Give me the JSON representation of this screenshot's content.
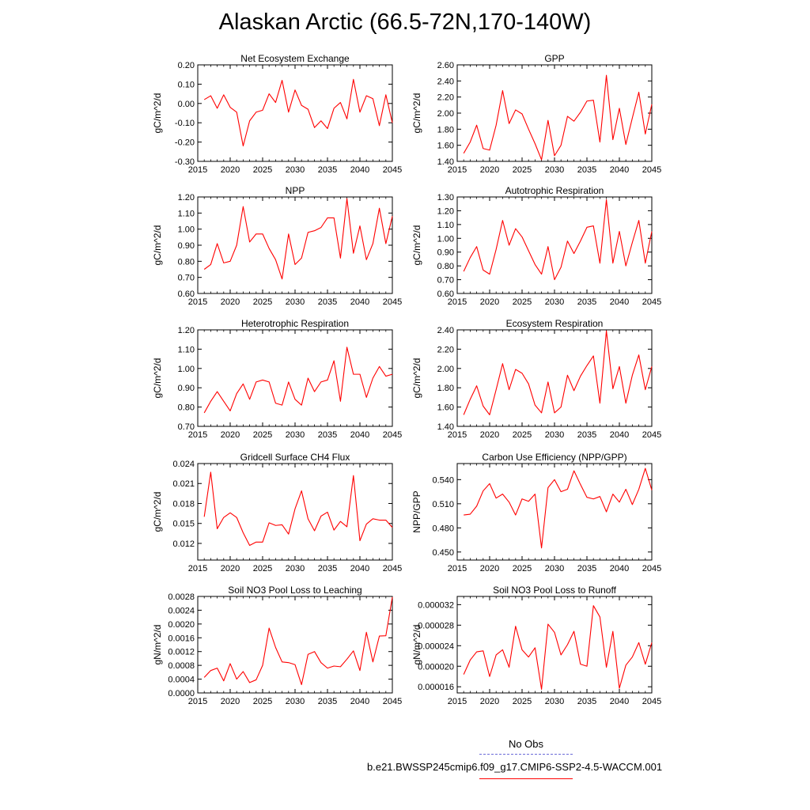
{
  "title": "Alaskan Arctic (66.5-72N,170-140W)",
  "colors": {
    "series": "#ff0000",
    "obs": "#6b6bd8",
    "axis": "#000000"
  },
  "legend": {
    "obs_label": "No Obs",
    "model_label": "b.e21.BWSSP245cmip6.f09_g17.CMIP6-SSP2-4.5-WACCM.001"
  },
  "chart_data": [
    {
      "type": "line",
      "title": "Net Ecosystem Exchange",
      "xlabel": "",
      "ylabel": "gC/m^2/d",
      "xlim": [
        2015,
        2045
      ],
      "ylim": [
        -0.3,
        0.2
      ],
      "xticks": [
        "2015",
        "2020",
        "2025",
        "2030",
        "2035",
        "2040",
        "2045"
      ],
      "yticks": [
        "-0.30",
        "-0.20",
        "-0.10",
        "0.00",
        "0.10",
        "0.20"
      ],
      "x": [
        2016,
        2017,
        2018,
        2019,
        2020,
        2021,
        2022,
        2023,
        2024,
        2025,
        2026,
        2027,
        2028,
        2029,
        2030,
        2031,
        2032,
        2033,
        2034,
        2035,
        2036,
        2037,
        2038,
        2039,
        2040,
        2041,
        2042,
        2043,
        2044,
        2045
      ],
      "values": [
        0.02,
        0.04,
        -0.025,
        0.045,
        -0.02,
        -0.045,
        -0.22,
        -0.09,
        -0.045,
        -0.035,
        0.05,
        0.005,
        0.12,
        -0.045,
        0.07,
        -0.01,
        -0.03,
        -0.125,
        -0.09,
        -0.13,
        -0.025,
        0.005,
        -0.08,
        0.125,
        -0.045,
        0.04,
        0.025,
        -0.115,
        0.045,
        -0.1
      ]
    },
    {
      "type": "line",
      "title": "GPP",
      "xlabel": "",
      "ylabel": "gC/m^2/d",
      "xlim": [
        2015,
        2045
      ],
      "ylim": [
        1.4,
        2.6
      ],
      "xticks": [
        "2015",
        "2020",
        "2025",
        "2030",
        "2035",
        "2040",
        "2045"
      ],
      "yticks": [
        "1.40",
        "1.60",
        "1.80",
        "2.00",
        "2.20",
        "2.40",
        "2.60"
      ],
      "x": [
        2016,
        2017,
        2018,
        2019,
        2020,
        2021,
        2022,
        2023,
        2024,
        2025,
        2026,
        2027,
        2028,
        2029,
        2030,
        2031,
        2032,
        2033,
        2034,
        2035,
        2036,
        2037,
        2038,
        2039,
        2040,
        2041,
        2042,
        2043,
        2044,
        2045
      ],
      "values": [
        1.5,
        1.64,
        1.85,
        1.56,
        1.54,
        1.85,
        2.28,
        1.87,
        2.04,
        1.99,
        1.8,
        1.62,
        1.42,
        1.91,
        1.47,
        1.6,
        1.96,
        1.9,
        2.01,
        2.15,
        2.16,
        1.64,
        2.47,
        1.67,
        2.06,
        1.61,
        1.94,
        2.26,
        1.74,
        2.11
      ]
    },
    {
      "type": "line",
      "title": "NPP",
      "xlabel": "",
      "ylabel": "gC/m^2/d",
      "xlim": [
        2015,
        2045
      ],
      "ylim": [
        0.6,
        1.2
      ],
      "xticks": [
        "2015",
        "2020",
        "2025",
        "2030",
        "2035",
        "2040",
        "2045"
      ],
      "yticks": [
        "0.60",
        "0.70",
        "0.80",
        "0.90",
        "1.00",
        "1.10",
        "1.20"
      ],
      "x": [
        2016,
        2017,
        2018,
        2019,
        2020,
        2021,
        2022,
        2023,
        2024,
        2025,
        2026,
        2027,
        2028,
        2029,
        2030,
        2031,
        2032,
        2033,
        2034,
        2035,
        2036,
        2037,
        2038,
        2039,
        2040,
        2041,
        2042,
        2043,
        2044,
        2045
      ],
      "values": [
        0.75,
        0.78,
        0.91,
        0.79,
        0.8,
        0.9,
        1.14,
        0.92,
        0.97,
        0.97,
        0.88,
        0.81,
        0.69,
        0.97,
        0.78,
        0.82,
        0.98,
        0.99,
        1.01,
        1.07,
        1.07,
        0.82,
        1.19,
        0.85,
        1.02,
        0.81,
        0.91,
        1.13,
        0.91,
        1.08
      ]
    },
    {
      "type": "line",
      "title": "Autotrophic Respiration",
      "xlabel": "",
      "ylabel": "gC/m^2/d",
      "xlim": [
        2015,
        2045
      ],
      "ylim": [
        0.6,
        1.3
      ],
      "xticks": [
        "2015",
        "2020",
        "2025",
        "2030",
        "2035",
        "2040",
        "2045"
      ],
      "yticks": [
        "0.60",
        "0.70",
        "0.80",
        "0.90",
        "1.00",
        "1.10",
        "1.20",
        "1.30"
      ],
      "x": [
        2016,
        2017,
        2018,
        2019,
        2020,
        2021,
        2022,
        2023,
        2024,
        2025,
        2026,
        2027,
        2028,
        2029,
        2030,
        2031,
        2032,
        2033,
        2034,
        2035,
        2036,
        2037,
        2038,
        2039,
        2040,
        2041,
        2042,
        2043,
        2044,
        2045
      ],
      "values": [
        0.76,
        0.86,
        0.94,
        0.77,
        0.74,
        0.92,
        1.13,
        0.95,
        1.07,
        1.01,
        0.91,
        0.81,
        0.74,
        0.94,
        0.7,
        0.79,
        0.98,
        0.89,
        0.98,
        1.08,
        1.09,
        0.82,
        1.28,
        0.82,
        1.05,
        0.8,
        0.97,
        1.13,
        0.82,
        1.05
      ]
    },
    {
      "type": "line",
      "title": "Heterotrophic Respiration",
      "xlabel": "",
      "ylabel": "gC/m^2/d",
      "xlim": [
        2015,
        2045
      ],
      "ylim": [
        0.7,
        1.2
      ],
      "xticks": [
        "2015",
        "2020",
        "2025",
        "2030",
        "2035",
        "2040",
        "2045"
      ],
      "yticks": [
        "0.70",
        "0.80",
        "0.90",
        "1.00",
        "1.10",
        "1.20"
      ],
      "x": [
        2016,
        2017,
        2018,
        2019,
        2020,
        2021,
        2022,
        2023,
        2024,
        2025,
        2026,
        2027,
        2028,
        2029,
        2030,
        2031,
        2032,
        2033,
        2034,
        2035,
        2036,
        2037,
        2038,
        2039,
        2040,
        2041,
        2042,
        2043,
        2044,
        2045
      ],
      "values": [
        0.77,
        0.83,
        0.88,
        0.83,
        0.78,
        0.87,
        0.92,
        0.84,
        0.93,
        0.94,
        0.93,
        0.82,
        0.81,
        0.93,
        0.84,
        0.81,
        0.95,
        0.88,
        0.93,
        0.94,
        1.04,
        0.83,
        1.11,
        0.97,
        0.97,
        0.85,
        0.95,
        1.01,
        0.96,
        0.97
      ]
    },
    {
      "type": "line",
      "title": "Ecosystem Respiration",
      "xlabel": "",
      "ylabel": "gC/m^2/d",
      "xlim": [
        2015,
        2045
      ],
      "ylim": [
        1.4,
        2.4
      ],
      "xticks": [
        "2015",
        "2020",
        "2025",
        "2030",
        "2035",
        "2040",
        "2045"
      ],
      "yticks": [
        "1.40",
        "1.60",
        "1.80",
        "2.00",
        "2.20",
        "2.40"
      ],
      "x": [
        2016,
        2017,
        2018,
        2019,
        2020,
        2021,
        2022,
        2023,
        2024,
        2025,
        2026,
        2027,
        2028,
        2029,
        2030,
        2031,
        2032,
        2033,
        2034,
        2035,
        2036,
        2037,
        2038,
        2039,
        2040,
        2041,
        2042,
        2043,
        2044,
        2045
      ],
      "values": [
        1.52,
        1.68,
        1.82,
        1.61,
        1.52,
        1.78,
        2.05,
        1.78,
        1.99,
        1.95,
        1.84,
        1.62,
        1.54,
        1.86,
        1.54,
        1.6,
        1.93,
        1.77,
        1.92,
        2.03,
        2.13,
        1.64,
        2.39,
        1.79,
        2.02,
        1.64,
        1.93,
        2.14,
        1.78,
        2.02
      ]
    },
    {
      "type": "line",
      "title": "Gridcell Surface CH4 Flux",
      "xlabel": "",
      "ylabel": "gC/m^2/d",
      "xlim": [
        2015,
        2045
      ],
      "ylim": [
        0.0095,
        0.024
      ],
      "xticks": [
        "2015",
        "2020",
        "2025",
        "2030",
        "2035",
        "2040",
        "2045"
      ],
      "yticks": [
        "0.012",
        "0.015",
        "0.018",
        "0.021",
        "0.024"
      ],
      "x": [
        2016,
        2017,
        2018,
        2019,
        2020,
        2021,
        2022,
        2023,
        2024,
        2025,
        2026,
        2027,
        2028,
        2029,
        2030,
        2031,
        2032,
        2033,
        2034,
        2035,
        2036,
        2037,
        2038,
        2039,
        2040,
        2041,
        2042,
        2043,
        2044,
        2045
      ],
      "values": [
        0.016,
        0.0227,
        0.0142,
        0.0159,
        0.0166,
        0.0159,
        0.0136,
        0.0117,
        0.0122,
        0.0122,
        0.0151,
        0.0147,
        0.0148,
        0.0134,
        0.0172,
        0.0199,
        0.0157,
        0.0139,
        0.0161,
        0.0167,
        0.014,
        0.0153,
        0.0145,
        0.0222,
        0.0124,
        0.0149,
        0.0157,
        0.0155,
        0.0155,
        0.0144
      ]
    },
    {
      "type": "line",
      "title": "Carbon Use Efficiency (NPP/GPP)",
      "xlabel": "",
      "ylabel": "NPP/GPP",
      "xlim": [
        2015,
        2045
      ],
      "ylim": [
        0.44,
        0.56
      ],
      "xticks": [
        "2015",
        "2020",
        "2025",
        "2030",
        "2035",
        "2040",
        "2045"
      ],
      "yticks": [
        "0.450",
        "0.480",
        "0.510",
        "0.540"
      ],
      "x": [
        2016,
        2017,
        2018,
        2019,
        2020,
        2021,
        2022,
        2023,
        2024,
        2025,
        2026,
        2027,
        2028,
        2029,
        2030,
        2031,
        2032,
        2033,
        2034,
        2035,
        2036,
        2037,
        2038,
        2039,
        2040,
        2041,
        2042,
        2043,
        2044,
        2045
      ],
      "values": [
        0.496,
        0.497,
        0.507,
        0.526,
        0.535,
        0.517,
        0.522,
        0.512,
        0.496,
        0.516,
        0.513,
        0.522,
        0.455,
        0.53,
        0.54,
        0.525,
        0.528,
        0.551,
        0.534,
        0.518,
        0.516,
        0.519,
        0.5,
        0.522,
        0.512,
        0.528,
        0.509,
        0.528,
        0.554,
        0.527
      ]
    },
    {
      "type": "line",
      "title": "Soil NO3 Pool Loss to Leaching",
      "xlabel": "",
      "ylabel": "gN/m^2/d",
      "xlim": [
        2015,
        2045
      ],
      "ylim": [
        0.0,
        0.0028
      ],
      "xticks": [
        "2015",
        "2020",
        "2025",
        "2030",
        "2035",
        "2040",
        "2045"
      ],
      "yticks": [
        "0.0000",
        "0.0004",
        "0.0008",
        "0.0012",
        "0.0016",
        "0.0020",
        "0.0024",
        "0.0028"
      ],
      "x": [
        2016,
        2017,
        2018,
        2019,
        2020,
        2021,
        2022,
        2023,
        2024,
        2025,
        2026,
        2027,
        2028,
        2029,
        2030,
        2031,
        2032,
        2033,
        2034,
        2035,
        2036,
        2037,
        2038,
        2039,
        2040,
        2041,
        2042,
        2043,
        2044,
        2045
      ],
      "values": [
        0.00045,
        0.00065,
        0.00072,
        0.00035,
        0.00085,
        0.0004,
        0.00062,
        0.0003,
        0.00038,
        0.0008,
        0.00188,
        0.00132,
        0.0009,
        0.00088,
        0.00082,
        0.00024,
        0.00112,
        0.0012,
        0.00088,
        0.00072,
        0.00078,
        0.00076,
        0.00098,
        0.00122,
        0.00065,
        0.00176,
        0.0009,
        0.00165,
        0.00166,
        0.00278
      ]
    },
    {
      "type": "line",
      "title": "Soil NO3 Pool Loss to Runoff",
      "xlabel": "",
      "ylabel": "gN/m^2/d",
      "xlim": [
        2015,
        2045
      ],
      "ylim": [
        1.48e-05,
        3.36e-05
      ],
      "xticks": [
        "2015",
        "2020",
        "2025",
        "2030",
        "2035",
        "2040",
        "2045"
      ],
      "yticks": [
        "0.000016",
        "0.000020",
        "0.000024",
        "0.000028",
        "0.000032"
      ],
      "x": [
        2016,
        2017,
        2018,
        2019,
        2020,
        2021,
        2022,
        2023,
        2024,
        2025,
        2026,
        2027,
        2028,
        2029,
        2030,
        2031,
        2032,
        2033,
        2034,
        2035,
        2036,
        2037,
        2038,
        2039,
        2040,
        2041,
        2042,
        2043,
        2044,
        2045
      ],
      "values": [
        1.84e-05,
        2.12e-05,
        2.28e-05,
        2.3e-05,
        1.8e-05,
        2.22e-05,
        2.32e-05,
        1.98e-05,
        2.78e-05,
        2.32e-05,
        2.18e-05,
        2.36e-05,
        1.55e-05,
        2.82e-05,
        2.66e-05,
        2.22e-05,
        2.42e-05,
        2.68e-05,
        2.04e-05,
        2e-05,
        3.18e-05,
        2.96e-05,
        1.98e-05,
        2.68e-05,
        1.57e-05,
        2.02e-05,
        2.18e-05,
        2.46e-05,
        2.04e-05,
        2.46e-05
      ]
    }
  ]
}
